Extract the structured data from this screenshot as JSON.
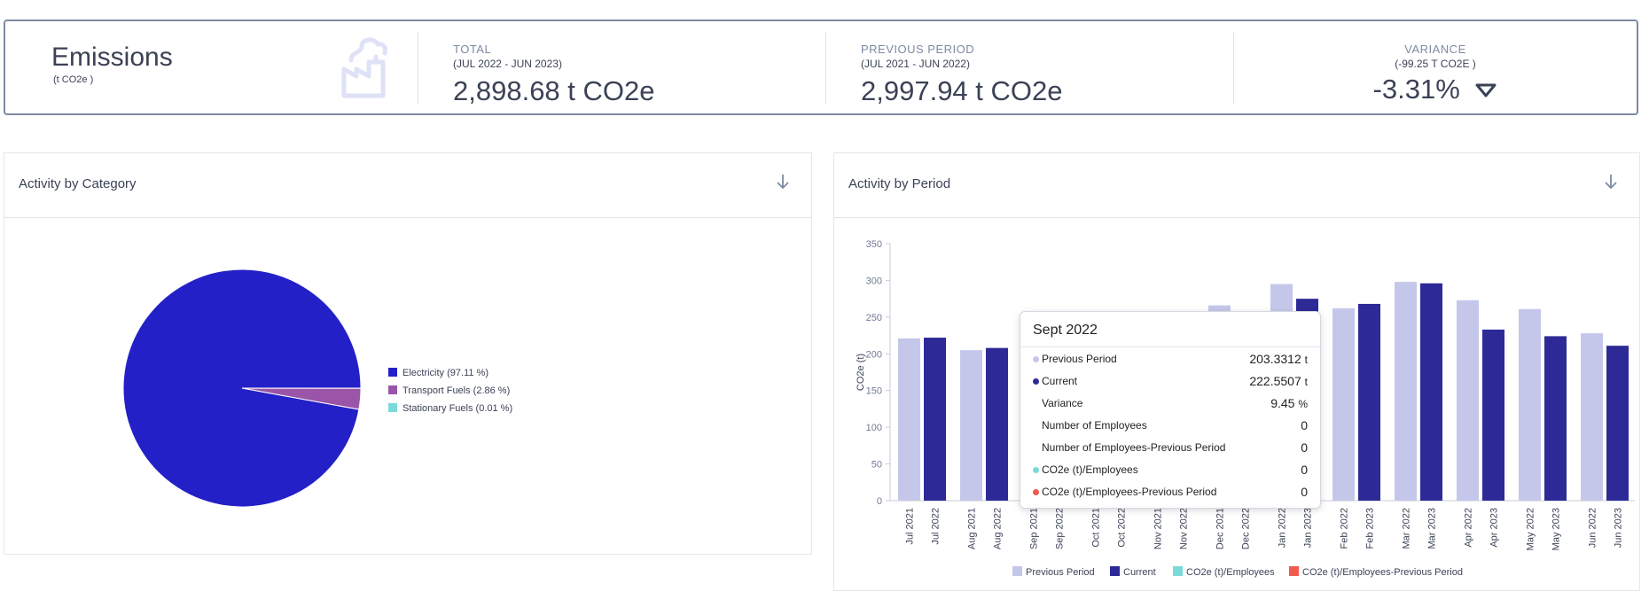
{
  "kpi": {
    "title": "Emissions",
    "unit": "(t CO2e )",
    "total_label": "TOTAL",
    "total_range": "(JUL 2022 - JUN 2023)",
    "total_value": "2,898.68 t CO2e",
    "prev_label": "PREVIOUS PERIOD",
    "prev_range": "(JUL 2021 - JUN 2022)",
    "prev_value": "2,997.94 t CO2e",
    "var_label": "VARIANCE",
    "var_sub": "(-99.25 T CO2E )",
    "var_value": "-3.31%"
  },
  "category_card": {
    "title": "Activity by Category",
    "download_icon": "arrow-down-icon"
  },
  "period_card": {
    "title": "Activity by Period",
    "download_icon": "arrow-down-icon"
  },
  "chart_data": [
    {
      "type": "pie",
      "labels": [
        "Electricity (97.11 %)",
        "Transport Fuels (2.86 %)",
        "Stationary Fuels (0.01 %)"
      ],
      "values": [
        97.11,
        2.86,
        0.01
      ],
      "colors": [
        "#2420c8",
        "#9a55a8",
        "#7ad9d9"
      ],
      "legend_position": "right"
    },
    {
      "type": "bar",
      "ylabel": "CO2e (t)",
      "ylim": [
        0,
        350
      ],
      "yticks": [
        0,
        50,
        100,
        150,
        200,
        250,
        300,
        350
      ],
      "groups": [
        {
          "labels": [
            "Jul 2021",
            "Jul 2022"
          ],
          "values": [
            221,
            222
          ]
        },
        {
          "labels": [
            "Aug 2021",
            "Aug 2022"
          ],
          "values": [
            205,
            208
          ]
        },
        {
          "labels": [
            "Sep 2021",
            "Sep 2022"
          ],
          "values": [
            203.3312,
            222.5507
          ]
        },
        {
          "labels": [
            "Oct 2021",
            "Oct 2022"
          ],
          "values": [
            0,
            0
          ]
        },
        {
          "labels": [
            "Nov 2021",
            "Nov 2022"
          ],
          "values": [
            0,
            0
          ]
        },
        {
          "labels": [
            "Dec 2021",
            "Dec 2022"
          ],
          "values": [
            266,
            0
          ]
        },
        {
          "labels": [
            "Jan 2022",
            "Jan 2023"
          ],
          "values": [
            295,
            275
          ]
        },
        {
          "labels": [
            "Feb 2022",
            "Feb 2023"
          ],
          "values": [
            262,
            268
          ]
        },
        {
          "labels": [
            "Mar 2022",
            "Mar 2023"
          ],
          "values": [
            298,
            296
          ]
        },
        {
          "labels": [
            "Apr 2022",
            "Apr 2023"
          ],
          "values": [
            273,
            233
          ]
        },
        {
          "labels": [
            "May 2022",
            "May 2023"
          ],
          "values": [
            261,
            224
          ]
        },
        {
          "labels": [
            "Jun 2022",
            "Jun 2023"
          ],
          "values": [
            228,
            211
          ]
        }
      ],
      "series": [
        {
          "name": "Previous Period",
          "color": "#c5c7ea"
        },
        {
          "name": "Current",
          "color": "#2d2a97"
        },
        {
          "name": "CO2e (t)/Employees",
          "color": "#7ad9d9"
        },
        {
          "name": "CO2e (t)/Employees-Previous Period",
          "color": "#f05a4f"
        }
      ],
      "legend_position": "bottom",
      "grid": false
    }
  ],
  "tooltip": {
    "title": "Sept 2022",
    "rows": [
      {
        "name": "Previous Period",
        "value": "203.3312",
        "unit": "t",
        "dot": "#c5c7ea"
      },
      {
        "name": "Current",
        "value": "222.5507",
        "unit": "t",
        "dot": "#2d2a97"
      },
      {
        "name": "Variance",
        "value": "9.45",
        "unit": "%",
        "dot": ""
      },
      {
        "name": "Number of Employees",
        "value": "0",
        "unit": "",
        "dot": ""
      },
      {
        "name": "Number of Employees-Previous Period",
        "value": "0",
        "unit": "",
        "dot": ""
      },
      {
        "name": "CO2e (t)/Employees",
        "value": "0",
        "unit": "",
        "dot": "#7ad9d9"
      },
      {
        "name": "CO2e (t)/Employees-Previous Period",
        "value": "0",
        "unit": "",
        "dot": "#f05a4f"
      }
    ]
  }
}
